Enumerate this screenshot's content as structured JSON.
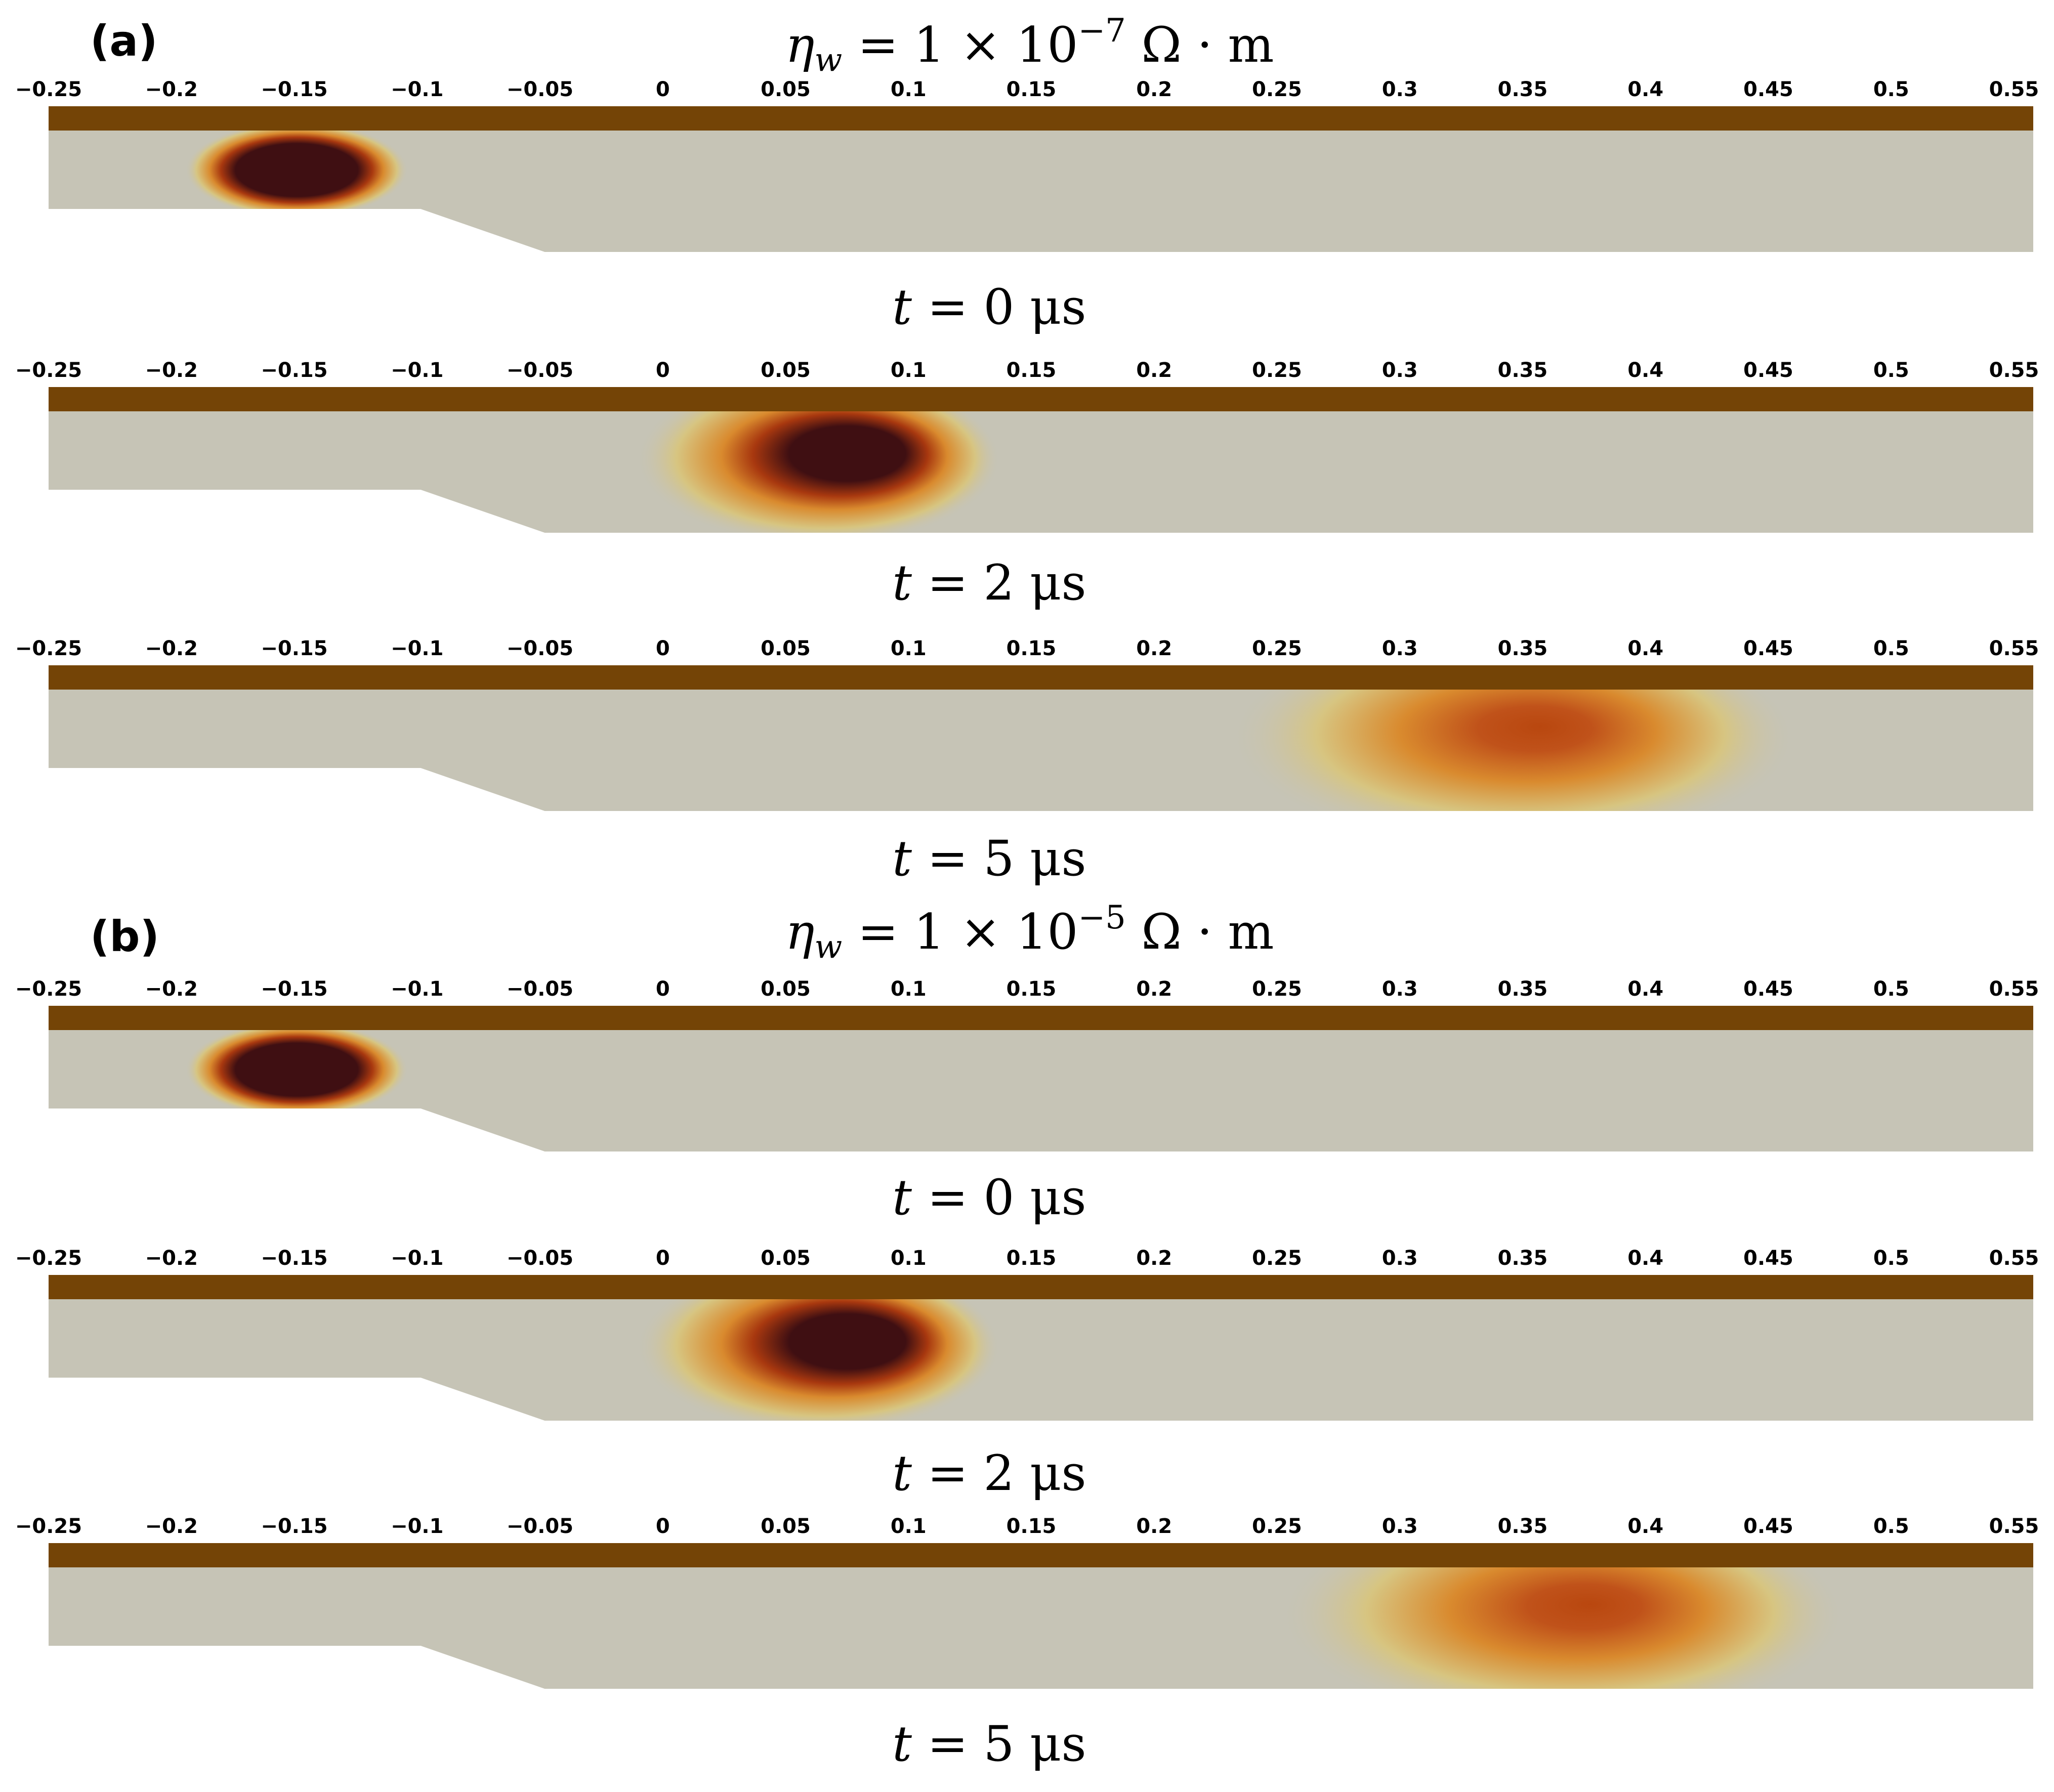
{
  "panels": [
    {
      "label": "(a)",
      "title": {
        "sym": "η",
        "sub": "w",
        "eq": " = 1 × 10",
        "exp": "−7",
        "unit": " Ω · m"
      },
      "strips": [
        {
          "time_label": "t = 0 μs",
          "t_us": 0,
          "blob_center_x": -0.15
        },
        {
          "time_label": "t = 2 μs",
          "t_us": 2,
          "blob_center_x": 0.06
        },
        {
          "time_label": "t = 5 μs",
          "t_us": 5,
          "blob_center_x": 0.34
        }
      ]
    },
    {
      "label": "(b)",
      "title": {
        "sym": "η",
        "sub": "w",
        "eq": " = 1 × 10",
        "exp": "−5",
        "unit": " Ω · m"
      },
      "strips": [
        {
          "time_label": "t = 0 μs",
          "t_us": 0,
          "blob_center_x": -0.15
        },
        {
          "time_label": "t = 2 μs",
          "t_us": 2,
          "blob_center_x": 0.06
        },
        {
          "time_label": "t = 5 μs",
          "t_us": 5,
          "blob_center_x": 0.36
        }
      ]
    }
  ],
  "axis": {
    "min": -0.25,
    "max": 0.55,
    "ticks": [
      "−0.25",
      "−0.2",
      "−0.15",
      "−0.1",
      "−0.05",
      "0",
      "0.05",
      "0.1",
      "0.15",
      "0.2",
      "0.25",
      "0.3",
      "0.35",
      "0.4",
      "0.45",
      "0.5",
      "0.55"
    ]
  },
  "colors": {
    "wall": "#744406",
    "channel": "#c6c4b6",
    "field_low": "#d7c581",
    "field_mid": "#d98a2e",
    "field_high": "#a8380f",
    "field_max": "#3f0f12"
  }
}
